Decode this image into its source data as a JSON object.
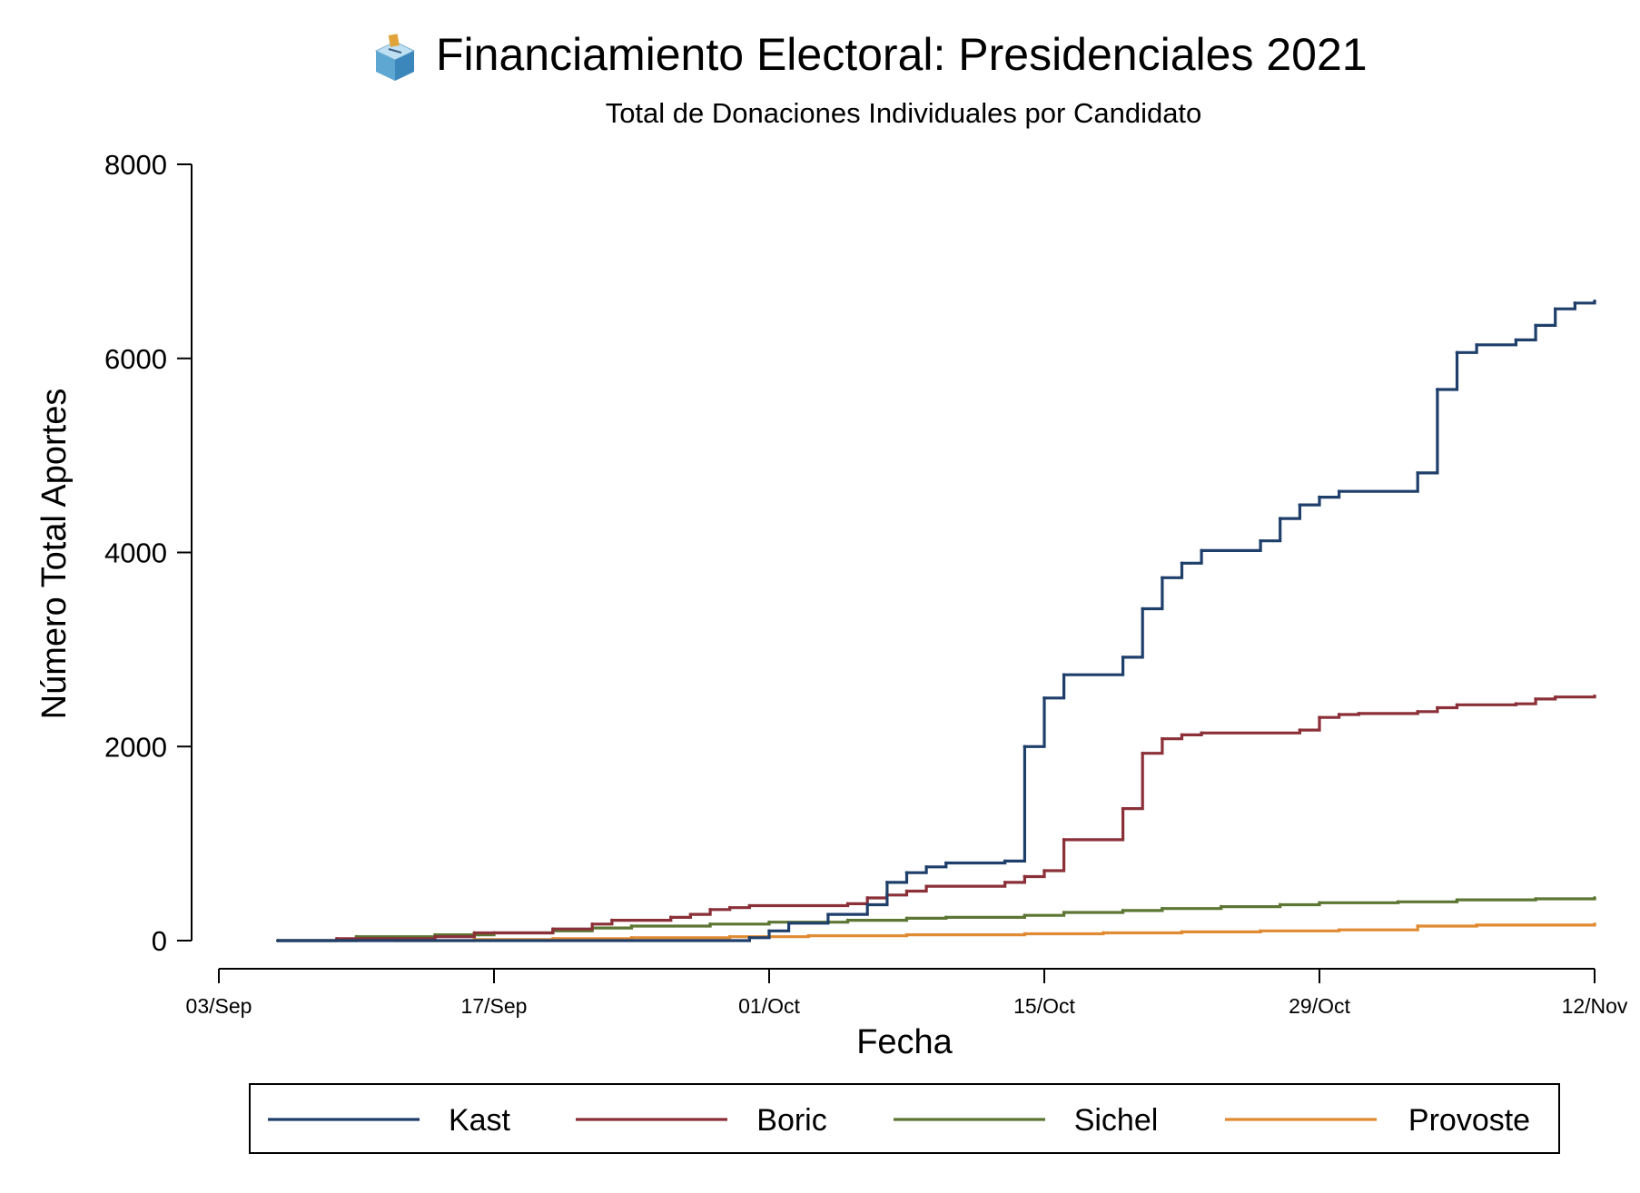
{
  "chart_data": {
    "type": "line",
    "step": true,
    "title": "Financiamiento Electoral: Presidenciales 2021",
    "title_icon": "ballot-box-icon",
    "subtitle": "Total de Donaciones Individuales por Candidato",
    "xlabel": "Fecha",
    "ylabel": "Número Total Aportes",
    "x_ticks": [
      "03/Sep",
      "17/Sep",
      "01/Oct",
      "15/Oct",
      "29/Oct",
      "12/Nov"
    ],
    "xlim": [
      "2021-09-03",
      "2021-11-12"
    ],
    "y_ticks": [
      0,
      2000,
      4000,
      6000,
      8000
    ],
    "ylim": [
      0,
      8000
    ],
    "grid": false,
    "legend_position": "bottom",
    "series": [
      {
        "name": "Kast",
        "color": "#1f3f6b",
        "points": [
          [
            "2021-09-06",
            0
          ],
          [
            "2021-09-30",
            30
          ],
          [
            "2021-10-01",
            100
          ],
          [
            "2021-10-02",
            180
          ],
          [
            "2021-10-04",
            270
          ],
          [
            "2021-10-06",
            370
          ],
          [
            "2021-10-07",
            600
          ],
          [
            "2021-10-08",
            700
          ],
          [
            "2021-10-09",
            760
          ],
          [
            "2021-10-10",
            800
          ],
          [
            "2021-10-13",
            820
          ],
          [
            "2021-10-14",
            2000
          ],
          [
            "2021-10-15",
            2500
          ],
          [
            "2021-10-16",
            2740
          ],
          [
            "2021-10-19",
            2920
          ],
          [
            "2021-10-20",
            3420
          ],
          [
            "2021-10-21",
            3740
          ],
          [
            "2021-10-22",
            3890
          ],
          [
            "2021-10-23",
            4020
          ],
          [
            "2021-10-26",
            4120
          ],
          [
            "2021-10-27",
            4350
          ],
          [
            "2021-10-28",
            4490
          ],
          [
            "2021-10-29",
            4570
          ],
          [
            "2021-10-30",
            4630
          ],
          [
            "2021-11-03",
            4820
          ],
          [
            "2021-11-04",
            5680
          ],
          [
            "2021-11-05",
            6060
          ],
          [
            "2021-11-06",
            6140
          ],
          [
            "2021-11-08",
            6190
          ],
          [
            "2021-11-09",
            6340
          ],
          [
            "2021-11-10",
            6510
          ],
          [
            "2021-11-11",
            6570
          ],
          [
            "2021-11-12",
            6590
          ]
        ]
      },
      {
        "name": "Boric",
        "color": "#8b3038",
        "points": [
          [
            "2021-09-06",
            0
          ],
          [
            "2021-09-09",
            20
          ],
          [
            "2021-09-14",
            40
          ],
          [
            "2021-09-16",
            80
          ],
          [
            "2021-09-20",
            120
          ],
          [
            "2021-09-22",
            170
          ],
          [
            "2021-09-23",
            210
          ],
          [
            "2021-09-26",
            240
          ],
          [
            "2021-09-27",
            270
          ],
          [
            "2021-09-28",
            320
          ],
          [
            "2021-09-29",
            340
          ],
          [
            "2021-09-30",
            360
          ],
          [
            "2021-10-05",
            380
          ],
          [
            "2021-10-06",
            440
          ],
          [
            "2021-10-07",
            470
          ],
          [
            "2021-10-08",
            510
          ],
          [
            "2021-10-09",
            560
          ],
          [
            "2021-10-13",
            600
          ],
          [
            "2021-10-14",
            660
          ],
          [
            "2021-10-15",
            720
          ],
          [
            "2021-10-16",
            1040
          ],
          [
            "2021-10-19",
            1360
          ],
          [
            "2021-10-20",
            1930
          ],
          [
            "2021-10-21",
            2080
          ],
          [
            "2021-10-22",
            2120
          ],
          [
            "2021-10-23",
            2140
          ],
          [
            "2021-10-28",
            2170
          ],
          [
            "2021-10-29",
            2300
          ],
          [
            "2021-10-30",
            2330
          ],
          [
            "2021-10-31",
            2340
          ],
          [
            "2021-11-03",
            2360
          ],
          [
            "2021-11-04",
            2400
          ],
          [
            "2021-11-05",
            2430
          ],
          [
            "2021-11-08",
            2440
          ],
          [
            "2021-11-09",
            2490
          ],
          [
            "2021-11-10",
            2510
          ],
          [
            "2021-11-12",
            2520
          ]
        ]
      },
      {
        "name": "Sichel",
        "color": "#5c7633",
        "points": [
          [
            "2021-09-06",
            0
          ],
          [
            "2021-09-10",
            40
          ],
          [
            "2021-09-14",
            60
          ],
          [
            "2021-09-17",
            80
          ],
          [
            "2021-09-20",
            100
          ],
          [
            "2021-09-22",
            130
          ],
          [
            "2021-09-24",
            150
          ],
          [
            "2021-09-28",
            170
          ],
          [
            "2021-10-01",
            190
          ],
          [
            "2021-10-05",
            210
          ],
          [
            "2021-10-08",
            230
          ],
          [
            "2021-10-10",
            240
          ],
          [
            "2021-10-14",
            260
          ],
          [
            "2021-10-16",
            290
          ],
          [
            "2021-10-19",
            310
          ],
          [
            "2021-10-21",
            330
          ],
          [
            "2021-10-24",
            350
          ],
          [
            "2021-10-27",
            370
          ],
          [
            "2021-10-29",
            390
          ],
          [
            "2021-11-02",
            400
          ],
          [
            "2021-11-05",
            420
          ],
          [
            "2021-11-09",
            430
          ],
          [
            "2021-11-12",
            440
          ]
        ]
      },
      {
        "name": "Provoste",
        "color": "#e08a32",
        "points": [
          [
            "2021-09-12",
            0
          ],
          [
            "2021-09-16",
            10
          ],
          [
            "2021-09-20",
            20
          ],
          [
            "2021-09-24",
            30
          ],
          [
            "2021-09-29",
            40
          ],
          [
            "2021-10-03",
            50
          ],
          [
            "2021-10-08",
            60
          ],
          [
            "2021-10-14",
            70
          ],
          [
            "2021-10-18",
            80
          ],
          [
            "2021-10-22",
            90
          ],
          [
            "2021-10-26",
            100
          ],
          [
            "2021-10-30",
            110
          ],
          [
            "2021-11-03",
            150
          ],
          [
            "2021-11-06",
            160
          ],
          [
            "2021-11-12",
            170
          ]
        ]
      }
    ]
  }
}
